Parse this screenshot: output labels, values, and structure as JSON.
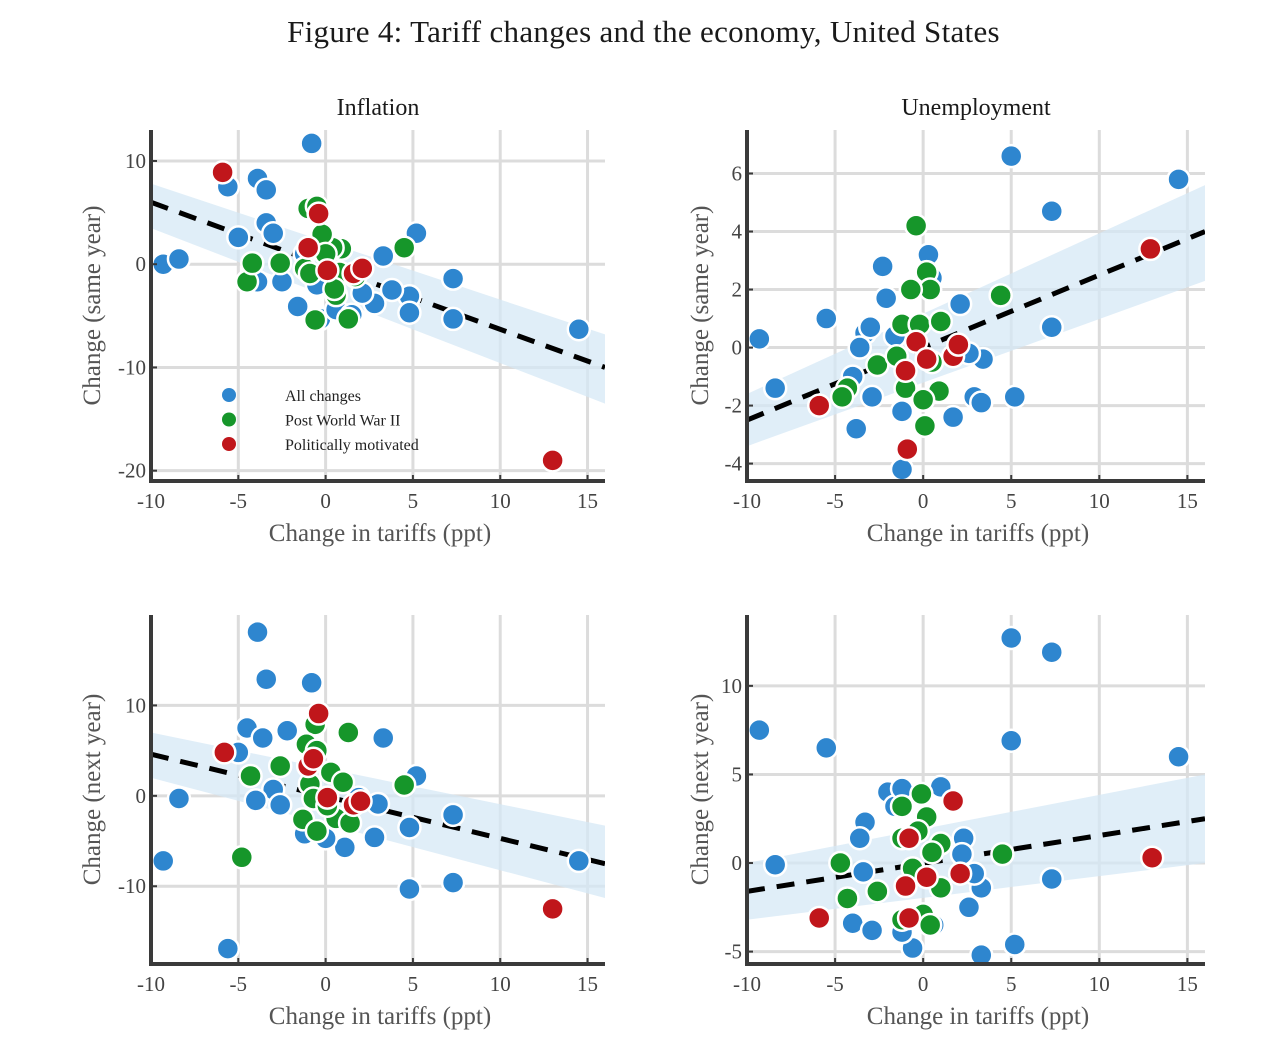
{
  "figure_title": "Figure 4: Tariff changes and the economy, United States",
  "colors": {
    "all_changes": "#2e86cf",
    "post_wwii": "#16962a",
    "political": "#c0161b",
    "fit_band": "#d6e8f6",
    "fit_line": "#000000",
    "grid": "#dcdcdc",
    "axis": "#3a3a3a"
  },
  "chart_data": [
    {
      "type": "scatter",
      "title": "Inflation",
      "xlabel": "Change in tariffs (ppt)",
      "ylabel": "Change (same year)",
      "xlim": [
        -10,
        16
      ],
      "ylim": [
        -21,
        13
      ],
      "xticks": [
        -10,
        -5,
        0,
        5,
        10,
        15
      ],
      "xtick_labels": [
        "-10",
        "-5",
        "0",
        "5",
        "10",
        "15"
      ],
      "yticks": [
        -20,
        -10,
        0,
        10
      ],
      "ytick_labels": [
        "-20",
        "-10",
        "0",
        "10"
      ],
      "grid": true,
      "legend": {
        "placement": "lower-left-inside",
        "entries": [
          "All changes",
          "Post World War II",
          "Politically motivated"
        ]
      },
      "fit": {
        "x": [
          -10,
          16
        ],
        "y": [
          6.0,
          -10.0
        ],
        "band_lower": [
          3.5,
          -13.5
        ],
        "band_upper": [
          7.8,
          -6.8
        ]
      },
      "series": [
        {
          "name": "All changes",
          "points": [
            [
              -9.3,
              0.0
            ],
            [
              -8.4,
              0.5
            ],
            [
              -5.6,
              7.5
            ],
            [
              -5.0,
              2.6
            ],
            [
              -3.9,
              8.3
            ],
            [
              -3.4,
              7.2
            ],
            [
              -3.4,
              4.0
            ],
            [
              -3.0,
              3.0
            ],
            [
              -3.9,
              -1.7
            ],
            [
              -2.5,
              -1.7
            ],
            [
              -1.6,
              -4.1
            ],
            [
              -0.3,
              -5.3
            ],
            [
              -0.8,
              11.7
            ],
            [
              -1.2,
              1.0
            ],
            [
              0.6,
              -4.4
            ],
            [
              1.5,
              -4.9
            ],
            [
              2.8,
              -3.8
            ],
            [
              3.3,
              0.8
            ],
            [
              5.2,
              3.0
            ],
            [
              4.8,
              -3.1
            ],
            [
              4.8,
              -4.7
            ],
            [
              3.8,
              -2.5
            ],
            [
              7.3,
              -1.4
            ],
            [
              7.3,
              -5.3
            ],
            [
              14.5,
              -6.3
            ],
            [
              2.1,
              -2.8
            ],
            [
              -0.5,
              -2.0
            ]
          ]
        },
        {
          "name": "Post World War II",
          "points": [
            [
              -4.5,
              -1.7
            ],
            [
              -4.2,
              0.1
            ],
            [
              -2.6,
              0.1
            ],
            [
              -1.0,
              5.4
            ],
            [
              -0.5,
              5.6
            ],
            [
              -1.2,
              -0.4
            ],
            [
              0.6,
              -3.0
            ],
            [
              -0.6,
              -5.4
            ],
            [
              1.3,
              -5.3
            ],
            [
              4.5,
              1.6
            ],
            [
              0.9,
              1.5
            ],
            [
              0.4,
              1.6
            ],
            [
              -0.2,
              2.9
            ],
            [
              0.8,
              -0.8
            ],
            [
              -0.9,
              -0.9
            ],
            [
              1.7,
              -1.2
            ],
            [
              0.0,
              1.0
            ],
            [
              0.5,
              -2.4
            ]
          ]
        },
        {
          "name": "Politically motivated",
          "points": [
            [
              -5.9,
              8.9
            ],
            [
              -0.4,
              4.9
            ],
            [
              -1.0,
              1.6
            ],
            [
              0.1,
              -0.6
            ],
            [
              1.6,
              -0.9
            ],
            [
              2.1,
              -0.4
            ],
            [
              13.0,
              -19.0
            ]
          ]
        }
      ]
    },
    {
      "type": "scatter",
      "title": "Unemployment",
      "xlabel": "Change in tariffs (ppt)",
      "ylabel": "Change (same year)",
      "xlim": [
        -10,
        16
      ],
      "ylim": [
        -4.6,
        7.5
      ],
      "xticks": [
        -10,
        -5,
        0,
        5,
        10,
        15
      ],
      "xtick_labels": [
        "-10",
        "-5",
        "0",
        "5",
        "10",
        "15"
      ],
      "yticks": [
        -4,
        -2,
        0,
        2,
        4,
        6
      ],
      "ytick_labels": [
        "-4",
        "-2",
        "0",
        "2",
        "4",
        "6"
      ],
      "grid": true,
      "fit": {
        "x": [
          -10,
          16
        ],
        "y": [
          -2.5,
          4.0
        ],
        "band_lower": [
          -3.4,
          2.3
        ],
        "band_upper": [
          -1.6,
          5.6
        ]
      },
      "series": [
        {
          "name": "All changes",
          "points": [
            [
              -9.3,
              0.3
            ],
            [
              -8.4,
              -1.4
            ],
            [
              -5.5,
              1.0
            ],
            [
              -3.8,
              -2.8
            ],
            [
              -2.9,
              -1.7
            ],
            [
              -3.3,
              0.5
            ],
            [
              -3.6,
              0.0
            ],
            [
              -3.0,
              0.7
            ],
            [
              -2.3,
              2.8
            ],
            [
              -2.1,
              1.7
            ],
            [
              0.3,
              3.2
            ],
            [
              0.5,
              2.4
            ],
            [
              2.1,
              1.5
            ],
            [
              3.4,
              -0.4
            ],
            [
              2.9,
              -1.7
            ],
            [
              3.3,
              -1.9
            ],
            [
              1.7,
              -2.4
            ],
            [
              -1.2,
              -2.2
            ],
            [
              -1.2,
              -4.2
            ],
            [
              5.0,
              6.6
            ],
            [
              5.2,
              -1.7
            ],
            [
              7.3,
              4.7
            ],
            [
              7.3,
              0.7
            ],
            [
              14.5,
              5.8
            ],
            [
              2.6,
              -0.2
            ],
            [
              -1.6,
              0.4
            ],
            [
              -4.0,
              -1.0
            ]
          ]
        },
        {
          "name": "Post World War II",
          "points": [
            [
              -0.4,
              4.2
            ],
            [
              0.2,
              2.6
            ],
            [
              0.4,
              2.0
            ],
            [
              -0.7,
              2.0
            ],
            [
              -1.2,
              0.8
            ],
            [
              -0.2,
              0.8
            ],
            [
              1.0,
              0.9
            ],
            [
              -2.6,
              -0.6
            ],
            [
              -4.3,
              -1.4
            ],
            [
              -4.6,
              -1.7
            ],
            [
              0.9,
              -1.5
            ],
            [
              0.1,
              -2.7
            ],
            [
              4.4,
              1.8
            ],
            [
              -1.0,
              -1.4
            ],
            [
              0.5,
              -0.5
            ],
            [
              -1.5,
              -0.3
            ],
            [
              0.0,
              -1.8
            ]
          ]
        },
        {
          "name": "Politically motivated",
          "points": [
            [
              -5.9,
              -2.0
            ],
            [
              -0.4,
              0.2
            ],
            [
              -1.0,
              -0.8
            ],
            [
              0.2,
              -0.4
            ],
            [
              1.7,
              -0.3
            ],
            [
              2.0,
              0.1
            ],
            [
              -0.9,
              -3.5
            ],
            [
              12.9,
              3.4
            ]
          ]
        }
      ]
    },
    {
      "type": "scatter",
      "title": "",
      "xlabel": "Change in tariffs (ppt)",
      "ylabel": "Change (next year)",
      "xlim": [
        -10,
        16
      ],
      "ylim": [
        -18.6,
        20
      ],
      "xticks": [
        -10,
        -5,
        0,
        5,
        10,
        15
      ],
      "xtick_labels": [
        "-10",
        "-5",
        "0",
        "5",
        "10",
        "15"
      ],
      "yticks": [
        -10,
        0,
        10
      ],
      "ytick_labels": [
        "-10",
        "0",
        "10"
      ],
      "grid": true,
      "fit": {
        "x": [
          -10,
          16
        ],
        "y": [
          4.6,
          -7.5
        ],
        "band_lower": [
          2.0,
          -11.3
        ],
        "band_upper": [
          7.0,
          -3.3
        ]
      },
      "series": [
        {
          "name": "All changes",
          "points": [
            [
              -9.3,
              -7.2
            ],
            [
              -8.4,
              -0.3
            ],
            [
              -5.6,
              -16.9
            ],
            [
              -5.0,
              4.8
            ],
            [
              -4.5,
              7.5
            ],
            [
              -3.9,
              18.1
            ],
            [
              -3.6,
              6.4
            ],
            [
              -3.4,
              12.9
            ],
            [
              -2.2,
              7.2
            ],
            [
              -0.8,
              12.5
            ],
            [
              3.3,
              6.4
            ],
            [
              5.2,
              2.2
            ],
            [
              4.8,
              -3.5
            ],
            [
              4.8,
              -10.3
            ],
            [
              7.3,
              -2.1
            ],
            [
              7.3,
              -9.6
            ],
            [
              14.5,
              -7.2
            ],
            [
              2.8,
              -4.6
            ],
            [
              1.1,
              -5.7
            ],
            [
              -3.0,
              0.7
            ],
            [
              -2.6,
              -1.0
            ],
            [
              -4.0,
              -0.5
            ],
            [
              1.9,
              -0.2
            ],
            [
              3.0,
              -0.9
            ],
            [
              -1.2,
              -4.2
            ],
            [
              0.0,
              -4.7
            ]
          ]
        },
        {
          "name": "Post World War II",
          "points": [
            [
              -4.3,
              2.2
            ],
            [
              -4.8,
              -6.8
            ],
            [
              -2.6,
              3.3
            ],
            [
              -0.6,
              7.9
            ],
            [
              -1.1,
              5.7
            ],
            [
              -0.5,
              5.0
            ],
            [
              1.3,
              7.0
            ],
            [
              4.5,
              1.2
            ],
            [
              -0.9,
              1.3
            ],
            [
              0.3,
              2.6
            ],
            [
              -0.7,
              -0.3
            ],
            [
              -1.3,
              -2.6
            ],
            [
              -0.5,
              -3.9
            ],
            [
              0.6,
              -2.5
            ],
            [
              1.4,
              -3.0
            ],
            [
              0.1,
              -1.1
            ],
            [
              1.0,
              1.5
            ]
          ]
        },
        {
          "name": "Politically motivated",
          "points": [
            [
              -5.8,
              4.8
            ],
            [
              -0.4,
              9.1
            ],
            [
              -1.0,
              3.3
            ],
            [
              -0.7,
              4.1
            ],
            [
              0.1,
              -0.2
            ],
            [
              1.6,
              -1.0
            ],
            [
              2.0,
              -0.6
            ],
            [
              13.0,
              -12.5
            ]
          ]
        }
      ]
    },
    {
      "type": "scatter",
      "title": "",
      "xlabel": "Change in tariffs (ppt)",
      "ylabel": "Change (next year)",
      "xlim": [
        -10,
        16
      ],
      "ylim": [
        -5.7,
        14
      ],
      "xticks": [
        -10,
        -5,
        0,
        5,
        10,
        15
      ],
      "xtick_labels": [
        "-10",
        "-5",
        "0",
        "5",
        "10",
        "15"
      ],
      "yticks": [
        -5,
        0,
        5,
        10
      ],
      "ytick_labels": [
        "-5",
        "0",
        "5",
        "10"
      ],
      "grid": true,
      "fit": {
        "x": [
          -10,
          16
        ],
        "y": [
          -1.6,
          2.5
        ],
        "band_lower": [
          -3.2,
          0.0
        ],
        "band_upper": [
          0.0,
          5.0
        ]
      },
      "series": [
        {
          "name": "All changes",
          "points": [
            [
              -9.3,
              7.5
            ],
            [
              -8.4,
              -0.1
            ],
            [
              -5.5,
              6.5
            ],
            [
              -4.0,
              -3.4
            ],
            [
              -2.9,
              -3.8
            ],
            [
              -3.3,
              2.3
            ],
            [
              -3.6,
              1.4
            ],
            [
              -2.0,
              4.0
            ],
            [
              -1.6,
              3.2
            ],
            [
              -1.2,
              4.2
            ],
            [
              1.0,
              4.3
            ],
            [
              2.3,
              1.4
            ],
            [
              2.2,
              0.5
            ],
            [
              3.3,
              -1.4
            ],
            [
              2.6,
              -2.5
            ],
            [
              2.9,
              -0.6
            ],
            [
              -0.6,
              -4.8
            ],
            [
              -1.2,
              -3.9
            ],
            [
              3.3,
              -5.2
            ],
            [
              5.0,
              12.7
            ],
            [
              5.0,
              6.9
            ],
            [
              5.2,
              -4.6
            ],
            [
              7.3,
              11.9
            ],
            [
              7.3,
              -0.9
            ],
            [
              14.5,
              6.0
            ],
            [
              -3.4,
              -0.5
            ],
            [
              0.6,
              -3.5
            ]
          ]
        },
        {
          "name": "Post World War II",
          "points": [
            [
              -4.7,
              0.0
            ],
            [
              -4.3,
              -2.0
            ],
            [
              -2.6,
              -1.6
            ],
            [
              -1.2,
              3.2
            ],
            [
              -0.1,
              3.9
            ],
            [
              0.2,
              2.6
            ],
            [
              -1.2,
              1.4
            ],
            [
              1.0,
              1.1
            ],
            [
              0.5,
              0.6
            ],
            [
              -0.6,
              -0.3
            ],
            [
              1.0,
              -1.4
            ],
            [
              0.0,
              -2.9
            ],
            [
              4.5,
              0.5
            ],
            [
              -1.2,
              -3.2
            ],
            [
              0.4,
              -3.5
            ],
            [
              -0.3,
              1.8
            ]
          ]
        },
        {
          "name": "Politically motivated",
          "points": [
            [
              -5.9,
              -3.1
            ],
            [
              -0.8,
              1.4
            ],
            [
              1.7,
              3.5
            ],
            [
              0.2,
              -0.8
            ],
            [
              -1.0,
              -1.3
            ],
            [
              2.1,
              -0.6
            ],
            [
              -0.8,
              -3.1
            ],
            [
              13.0,
              0.3
            ]
          ]
        }
      ]
    }
  ]
}
